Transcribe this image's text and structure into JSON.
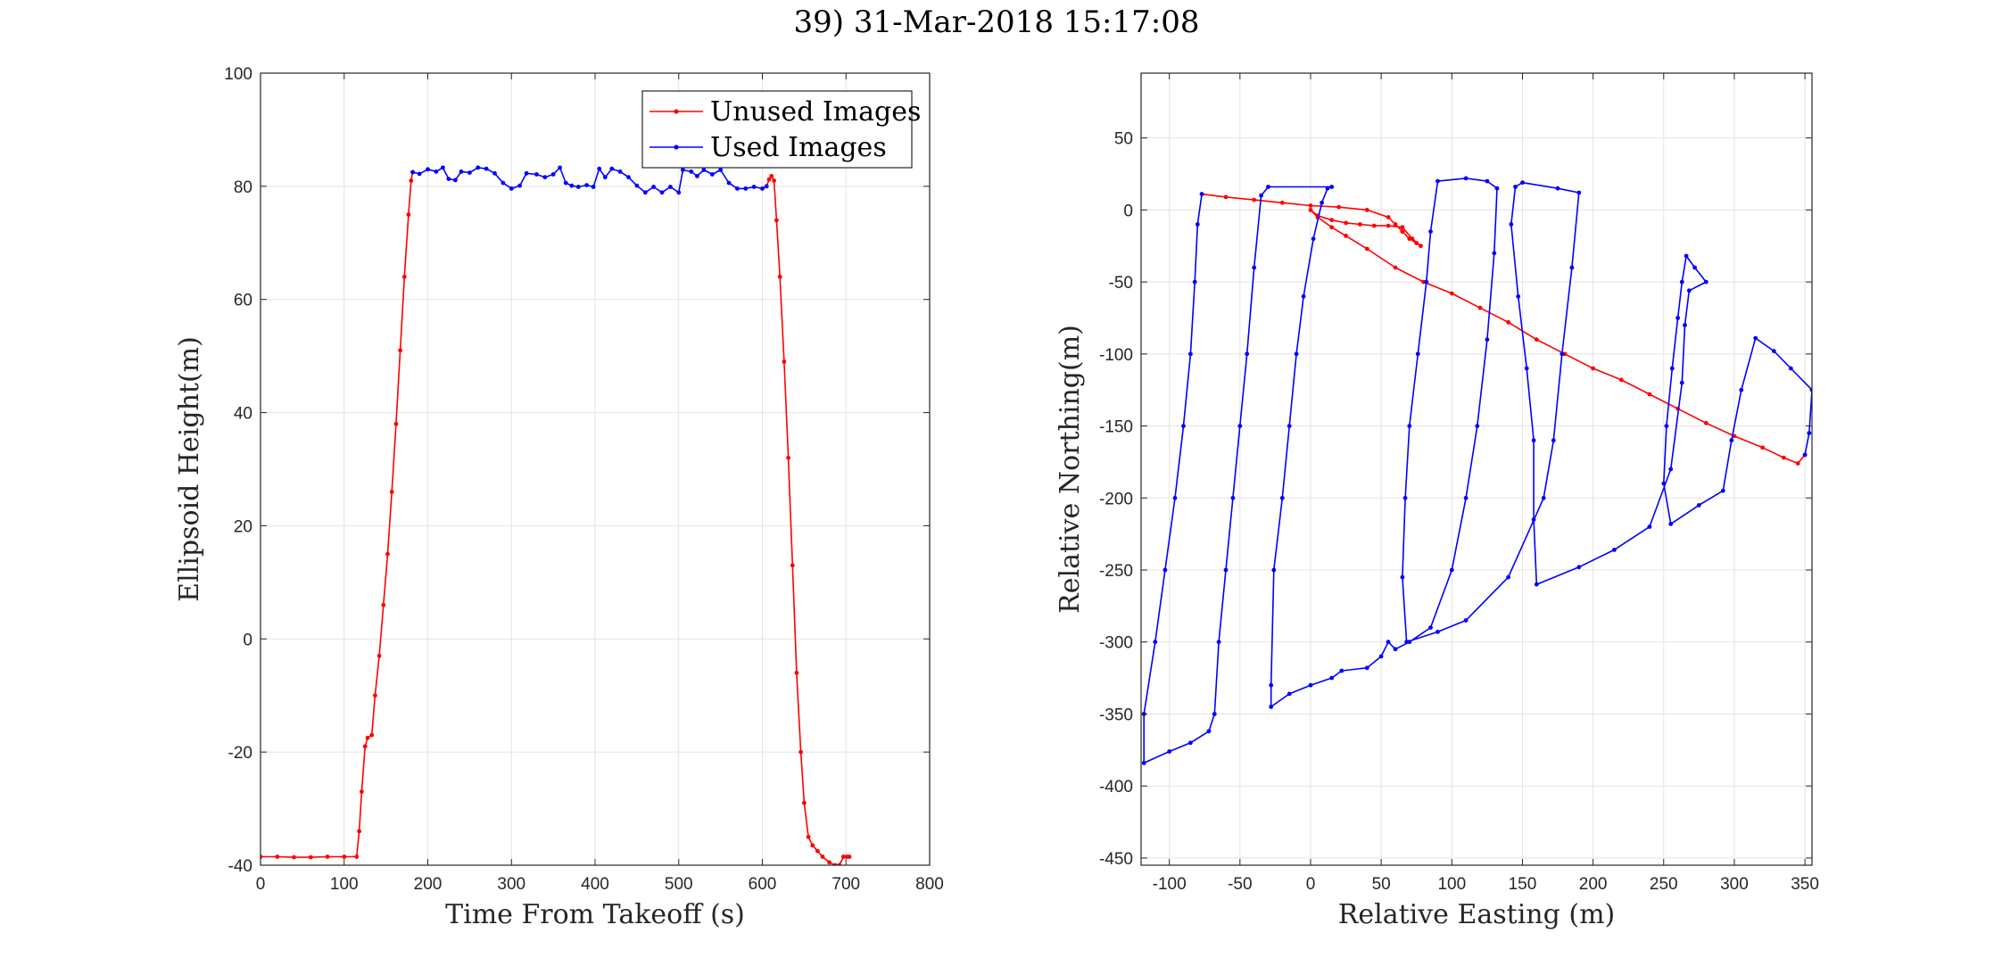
{
  "figure_title": "39) 31-Mar-2018 15:17:08",
  "colors": {
    "unused": "#ff0000",
    "used": "#0000ff"
  },
  "chart_data": [
    {
      "type": "line",
      "xlabel": "Time From Takeoff (s)",
      "ylabel": "Ellipsoid Height(m)",
      "xlim": [
        0,
        800
      ],
      "ylim": [
        -40,
        100
      ],
      "xticks": [
        0,
        100,
        200,
        300,
        400,
        500,
        600,
        700,
        800
      ],
      "yticks": [
        -40,
        -20,
        0,
        20,
        40,
        60,
        80,
        100
      ],
      "grid": true,
      "legend": {
        "placement": "top-right",
        "entries": [
          "Unused Images",
          "Used Images"
        ]
      },
      "series": [
        {
          "name": "Unused Images",
          "color": "#ff0000",
          "segments": [
            [
              [
                0,
                -38.5
              ],
              [
                20,
                -38.5
              ],
              [
                40,
                -38.6
              ],
              [
                60,
                -38.6
              ],
              [
                80,
                -38.5
              ],
              [
                100,
                -38.5
              ],
              [
                115,
                -38.5
              ],
              [
                118,
                -34
              ],
              [
                121,
                -27
              ],
              [
                125,
                -19
              ],
              [
                128,
                -17.5
              ],
              [
                133,
                -17
              ],
              [
                137,
                -10
              ],
              [
                142,
                -3
              ],
              [
                147,
                6
              ],
              [
                152,
                15
              ],
              [
                157,
                26
              ],
              [
                162,
                38
              ],
              [
                167,
                51
              ],
              [
                172,
                64
              ],
              [
                177,
                75
              ],
              [
                180,
                81
              ],
              [
                182,
                82.5
              ]
            ],
            [
              [
                605,
                80
              ],
              [
                608,
                81.2
              ],
              [
                611,
                81.8
              ],
              [
                614,
                81
              ],
              [
                617,
                74
              ],
              [
                621,
                64
              ],
              [
                626,
                49
              ],
              [
                631,
                32
              ],
              [
                636,
                13
              ],
              [
                641,
                -6
              ],
              [
                646,
                -20
              ],
              [
                650,
                -29
              ],
              [
                655,
                -35
              ],
              [
                660,
                -36.5
              ],
              [
                666,
                -37.5
              ],
              [
                672,
                -38.5
              ],
              [
                680,
                -39.5
              ],
              [
                687,
                -40
              ],
              [
                692,
                -40
              ],
              [
                697,
                -38.5
              ],
              [
                701,
                -38.5
              ],
              [
                704,
                -38.5
              ]
            ]
          ]
        },
        {
          "name": "Used Images",
          "color": "#0000ff",
          "segments": [
            [
              [
                182,
                82.5
              ],
              [
                190,
                82.2
              ],
              [
                200,
                83
              ],
              [
                210,
                82.6
              ],
              [
                218,
                83.3
              ],
              [
                225,
                81.3
              ],
              [
                233,
                81.1
              ],
              [
                240,
                82.6
              ],
              [
                250,
                82.4
              ],
              [
                260,
                83.3
              ],
              [
                270,
                83.1
              ],
              [
                280,
                82.3
              ],
              [
                290,
                80.6
              ],
              [
                300,
                79.6
              ],
              [
                310,
                80.1
              ],
              [
                318,
                82.3
              ],
              [
                330,
                82.1
              ],
              [
                340,
                81.6
              ],
              [
                350,
                82.1
              ],
              [
                358,
                83.3
              ],
              [
                365,
                80.6
              ],
              [
                372,
                80.1
              ],
              [
                380,
                79.9
              ],
              [
                390,
                80.2
              ],
              [
                398,
                79.9
              ],
              [
                405,
                83.1
              ],
              [
                412,
                81.6
              ],
              [
                420,
                83.1
              ],
              [
                430,
                82.6
              ],
              [
                440,
                81.6
              ],
              [
                450,
                80.1
              ],
              [
                460,
                78.9
              ],
              [
                470,
                79.9
              ],
              [
                480,
                78.9
              ],
              [
                490,
                79.9
              ],
              [
                500,
                78.9
              ],
              [
                505,
                82.9
              ],
              [
                515,
                82.6
              ],
              [
                522,
                81.8
              ],
              [
                530,
                82.9
              ],
              [
                540,
                82.1
              ],
              [
                550,
                82.9
              ],
              [
                560,
                80.6
              ],
              [
                570,
                79.6
              ],
              [
                580,
                79.6
              ],
              [
                590,
                79.9
              ],
              [
                600,
                79.6
              ],
              [
                605,
                80
              ]
            ]
          ]
        }
      ]
    },
    {
      "type": "line",
      "xlabel": "Relative Easting (m)",
      "ylabel": "Relative Northing(m)",
      "xlim": [
        -120,
        355
      ],
      "ylim": [
        -455,
        95
      ],
      "xticks": [
        -100,
        -50,
        0,
        50,
        100,
        150,
        200,
        250,
        300,
        350
      ],
      "yticks": [
        -450,
        -400,
        -350,
        -300,
        -250,
        -200,
        -150,
        -100,
        -50,
        0,
        50
      ],
      "grid": true,
      "series": [
        {
          "name": "Unused Images",
          "color": "#ff0000",
          "segments": [
            [
              [
                -77,
                11
              ],
              [
                -60,
                9
              ],
              [
                -40,
                7
              ],
              [
                -20,
                5
              ],
              [
                0,
                3
              ],
              [
                20,
                2
              ],
              [
                40,
                0
              ],
              [
                55,
                -5
              ],
              [
                60,
                -10
              ],
              [
                65,
                -15
              ],
              [
                70,
                -20
              ],
              [
                75,
                -23
              ],
              [
                78,
                -25
              ],
              [
                72,
                -20
              ],
              [
                65,
                -12
              ],
              [
                55,
                -11
              ],
              [
                45,
                -11
              ],
              [
                35,
                -10
              ],
              [
                25,
                -9
              ],
              [
                15,
                -7
              ],
              [
                5,
                -4
              ],
              [
                0,
                0
              ],
              [
                5,
                -5
              ],
              [
                15,
                -12
              ],
              [
                25,
                -18
              ],
              [
                40,
                -27
              ],
              [
                60,
                -40
              ],
              [
                80,
                -50
              ],
              [
                100,
                -58
              ],
              [
                120,
                -68
              ],
              [
                140,
                -78
              ],
              [
                160,
                -90
              ],
              [
                180,
                -100
              ],
              [
                200,
                -110
              ],
              [
                220,
                -118
              ],
              [
                240,
                -128
              ],
              [
                260,
                -138
              ],
              [
                280,
                -148
              ],
              [
                300,
                -157
              ],
              [
                320,
                -165
              ],
              [
                335,
                -172
              ],
              [
                345,
                -176
              ],
              [
                350,
                -170
              ]
            ]
          ]
        },
        {
          "name": "Used Images",
          "color": "#0000ff",
          "segments": [
            [
              [
                350,
                -170
              ],
              [
                353,
                -155
              ],
              [
                355,
                -125
              ],
              [
                340,
                -110
              ],
              [
                328,
                -98
              ],
              [
                315,
                -89
              ],
              [
                305,
                -125
              ],
              [
                298,
                -160
              ],
              [
                292,
                -195
              ],
              [
                275,
                -205
              ],
              [
                255,
                -218
              ],
              [
                250,
                -190
              ],
              [
                252,
                -150
              ],
              [
                256,
                -110
              ],
              [
                260,
                -75
              ],
              [
                263,
                -50
              ],
              [
                266,
                -32
              ],
              [
                272,
                -40
              ],
              [
                280,
                -50
              ],
              [
                268,
                -56
              ],
              [
                265,
                -80
              ],
              [
                263,
                -120
              ],
              [
                255,
                -180
              ],
              [
                240,
                -220
              ],
              [
                215,
                -236
              ],
              [
                190,
                -248
              ],
              [
                160,
                -260
              ],
              [
                158,
                -215
              ],
              [
                158,
                -160
              ],
              [
                153,
                -110
              ],
              [
                147,
                -60
              ],
              [
                142,
                -10
              ],
              [
                145,
                16
              ],
              [
                150,
                19
              ],
              [
                175,
                15
              ],
              [
                190,
                12
              ],
              [
                185,
                -40
              ],
              [
                178,
                -100
              ],
              [
                172,
                -160
              ],
              [
                165,
                -200
              ],
              [
                140,
                -255
              ],
              [
                110,
                -285
              ],
              [
                90,
                -293
              ],
              [
                68,
                -300
              ],
              [
                65,
                -255
              ],
              [
                67,
                -200
              ],
              [
                70,
                -150
              ],
              [
                76,
                -100
              ],
              [
                82,
                -50
              ],
              [
                85,
                -15
              ],
              [
                90,
                20
              ],
              [
                110,
                22
              ],
              [
                125,
                20
              ],
              [
                132,
                15
              ],
              [
                130,
                -30
              ],
              [
                125,
                -90
              ],
              [
                118,
                -150
              ],
              [
                110,
                -200
              ],
              [
                100,
                -250
              ],
              [
                85,
                -290
              ],
              [
                70,
                -300
              ],
              [
                60,
                -305
              ],
              [
                55,
                -300
              ],
              [
                50,
                -310
              ],
              [
                40,
                -318
              ],
              [
                22,
                -320
              ],
              [
                15,
                -325
              ],
              [
                0,
                -330
              ],
              [
                -15,
                -336
              ],
              [
                -28,
                -345
              ],
              [
                -28,
                -330
              ],
              [
                -26,
                -250
              ],
              [
                -20,
                -200
              ],
              [
                -15,
                -150
              ],
              [
                -10,
                -100
              ],
              [
                -5,
                -60
              ],
              [
                2,
                -20
              ],
              [
                8,
                5
              ],
              [
                12,
                15
              ],
              [
                15,
                16
              ],
              [
                -30,
                16
              ],
              [
                -35,
                10
              ],
              [
                -40,
                -40
              ],
              [
                -45,
                -100
              ],
              [
                -50,
                -150
              ],
              [
                -55,
                -200
              ],
              [
                -60,
                -250
              ],
              [
                -65,
                -300
              ],
              [
                -68,
                -350
              ],
              [
                -72,
                -362
              ],
              [
                -85,
                -370
              ],
              [
                -100,
                -376
              ],
              [
                -118,
                -384
              ],
              [
                -118,
                -350
              ],
              [
                -110,
                -300
              ],
              [
                -103,
                -250
              ],
              [
                -96,
                -200
              ],
              [
                -90,
                -150
              ],
              [
                -85,
                -100
              ],
              [
                -82,
                -50
              ],
              [
                -80,
                -10
              ],
              [
                -77,
                11
              ]
            ]
          ]
        }
      ]
    }
  ]
}
